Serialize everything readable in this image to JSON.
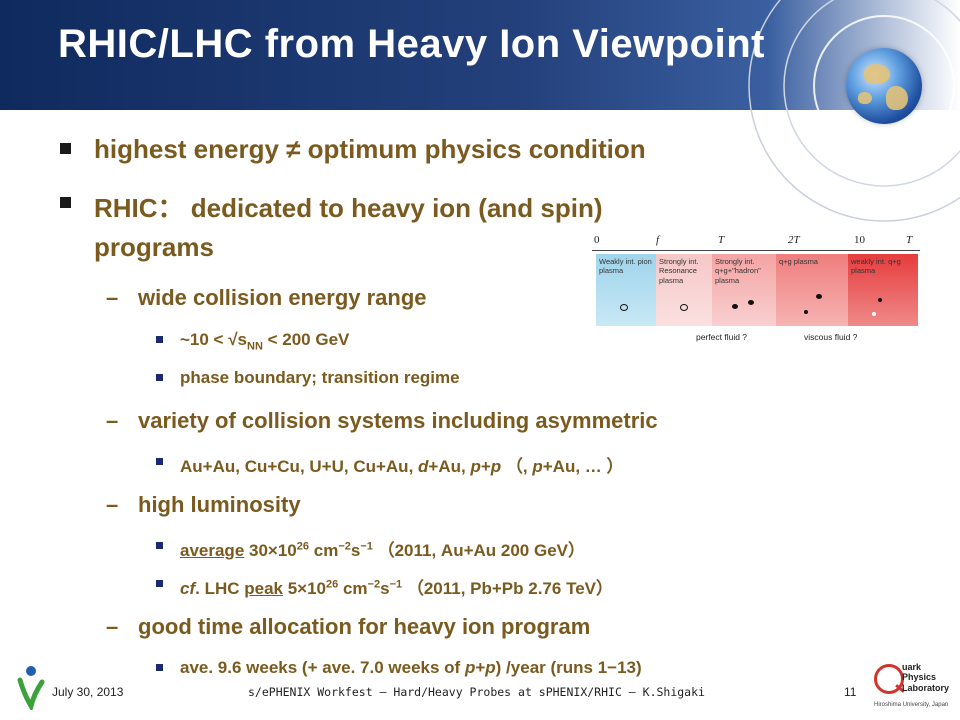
{
  "slide": {
    "title": "RHIC/LHC from Heavy Ion Viewpoint",
    "bullets": {
      "b1": "highest energy ≠ optimum physics condition",
      "b2_line1": "RHIC： dedicated to heavy ion (and spin)",
      "b2_line2": "programs",
      "s1": "wide collision energy range",
      "s1a_pre": "~10 < √s",
      "s1a_sub": "NN",
      "s1a_post": " < 200 GeV",
      "s1b": "phase boundary; transition regime",
      "s2": "variety of collision systems including asymmetric",
      "s2a_1": "Au+Au, Cu+Cu, U+U, Cu+Au, ",
      "s2a_d": "d",
      "s2a_2": "+Au, ",
      "s2a_p1": "p",
      "s2a_3": "+",
      "s2a_p2": "p",
      "s2a_4": " （, ",
      "s2a_p3": "p",
      "s2a_5": "+Au, … ）",
      "s3": "high luminosity",
      "s3a_u": "average",
      "s3a_1": " 30×10",
      "s3a_sup1": "26",
      "s3a_2": " cm",
      "s3a_sup2": "−2",
      "s3a_3": "s",
      "s3a_sup3": "−1",
      "s3a_4": " （2011, Au+Au 200 GeV）",
      "s3b_cf": "cf",
      "s3b_1": ". LHC ",
      "s3b_u": "peak",
      "s3b_2": " 5×10",
      "s3b_sup1": "26",
      "s3b_3": " cm",
      "s3b_sup2": "−2",
      "s3b_4": "s",
      "s3b_sup3": "−1",
      "s3b_5": " （2011, Pb+Pb 2.76 TeV）",
      "s4": "good time allocation for heavy ion program",
      "s4a_1": "ave. 9.6 weeks (+ ave. 7.0 weeks of ",
      "s4a_p1": "p",
      "s4a_2": "+",
      "s4a_p2": "p",
      "s4a_3": ") /year (runs 1−13)"
    },
    "dash": "–"
  },
  "phase_diagram": {
    "scale_labels": [
      "0",
      "f",
      "T",
      "2T",
      "10",
      "T"
    ],
    "regions": [
      "Weakly int. pion plasma",
      "Strongly int. Resonance plasma",
      "Strongly int. q+g+\"hadron\" plasma",
      "q+g plasma",
      "weakly int. q+g plasma"
    ],
    "foot_left": "perfect fluid ?",
    "foot_right": "viscous fluid ?"
  },
  "footer": {
    "date": "July 30, 2013",
    "title": "s/ePHENIX Workfest – Hard/Heavy Probes at sPHENIX/RHIC – K.Shigaki",
    "page": "11"
  },
  "logo": {
    "right_text": [
      "uark",
      "Physics",
      "Laboratory"
    ],
    "right_uni": "Hiroshima University, Japan"
  }
}
